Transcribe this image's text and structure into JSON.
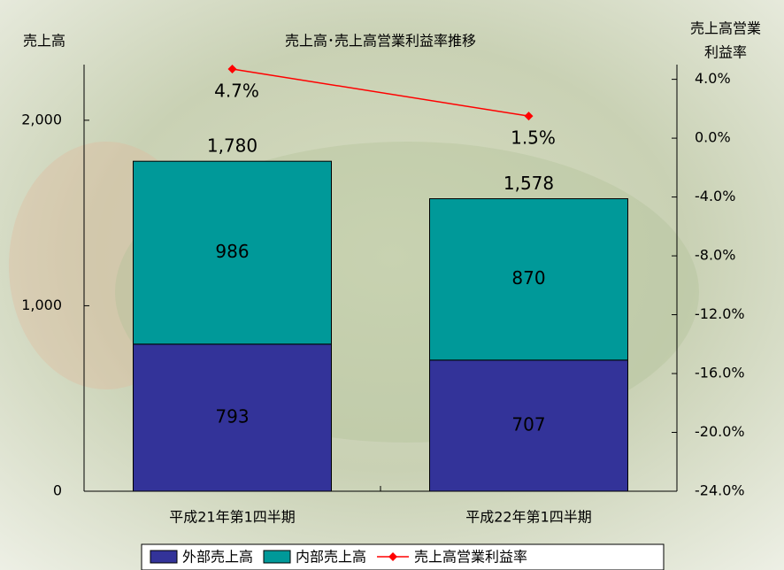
{
  "chart_data": {
    "type": "bar",
    "title": "売上高･売上高営業利益率推移",
    "ylabel": "売上高",
    "y2label": [
      "売上高営業",
      "利益率"
    ],
    "categories": [
      "平成21年第1四半期",
      "平成22年第1四半期"
    ],
    "series": [
      {
        "name": "外部売上高",
        "color": "#333399",
        "values": [
          793,
          707
        ]
      },
      {
        "name": "内部売上高",
        "color": "#009999",
        "values": [
          986,
          870
        ]
      },
      {
        "name": "売上高営業利益率",
        "color": "#ff0000",
        "type": "line",
        "axis": "y2",
        "values": [
          4.7,
          1.5
        ],
        "value_labels": [
          "4.7%",
          "1.5%"
        ]
      }
    ],
    "totals": {
      "values": [
        1780,
        1578
      ],
      "value_labels": [
        "1,780",
        "1,578"
      ],
      "color": "#333399"
    },
    "ylim": [
      0,
      2300
    ],
    "yticks": [
      0,
      {
        "value": 1000,
        "label": "1,000"
      },
      {
        "value": 2000,
        "label": "2,000"
      }
    ],
    "y2lim": [
      -24,
      5
    ],
    "y2ticks": [
      {
        "value": 4,
        "label": "4.0%"
      },
      {
        "value": 0,
        "label": "0.0%"
      },
      {
        "value": -4,
        "label": "-4.0%"
      },
      {
        "value": -8,
        "label": "-8.0%"
      },
      {
        "value": -12,
        "label": "-12.0%"
      },
      {
        "value": -16,
        "label": "-16.0%"
      },
      {
        "value": -20,
        "label": "-20.0%"
      },
      {
        "value": -24,
        "label": "-24.0%"
      }
    ]
  }
}
